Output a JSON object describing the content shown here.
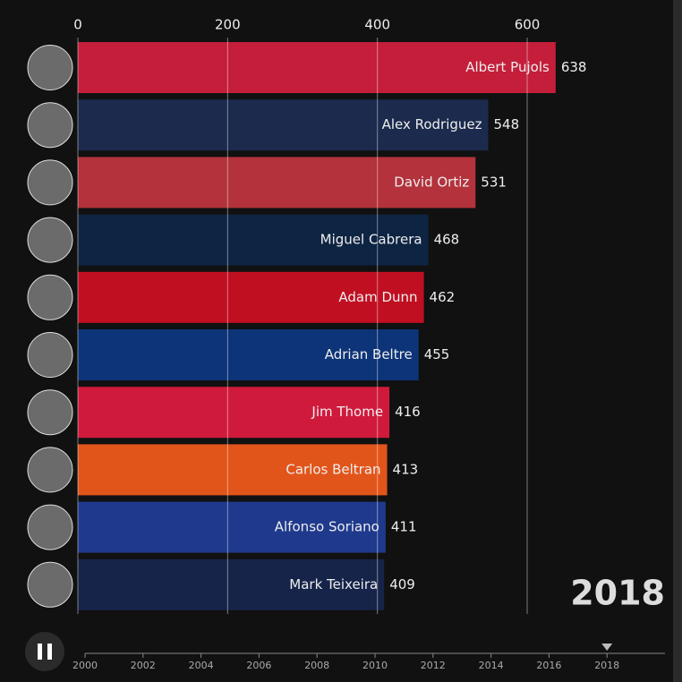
{
  "chart_data": {
    "type": "bar",
    "categories": [
      "Albert Pujols",
      "Alex Rodriguez",
      "David Ortiz",
      "Miguel Cabrera",
      "Adam Dunn",
      "Adrian Beltre",
      "Jim Thome",
      "Carlos Beltran",
      "Alfonso Soriano",
      "Mark Teixeira"
    ],
    "values": [
      638,
      548,
      531,
      468,
      462,
      455,
      416,
      413,
      411,
      409
    ],
    "colors": [
      "#c41e3a",
      "#1b2a4d",
      "#b3323b",
      "#0e2443",
      "#c10f22",
      "#0d3478",
      "#d01a3c",
      "#e2551a",
      "#1f3a8c",
      "#16244a"
    ],
    "xlim": [
      0,
      790
    ],
    "xticks": [
      0,
      200,
      400,
      600
    ],
    "grid": true,
    "timeline": {
      "lim": [
        2000,
        2020
      ],
      "ticks": [
        2000,
        2002,
        2004,
        2006,
        2008,
        2010,
        2012,
        2014,
        2016,
        2018
      ],
      "current": 2018
    }
  }
}
